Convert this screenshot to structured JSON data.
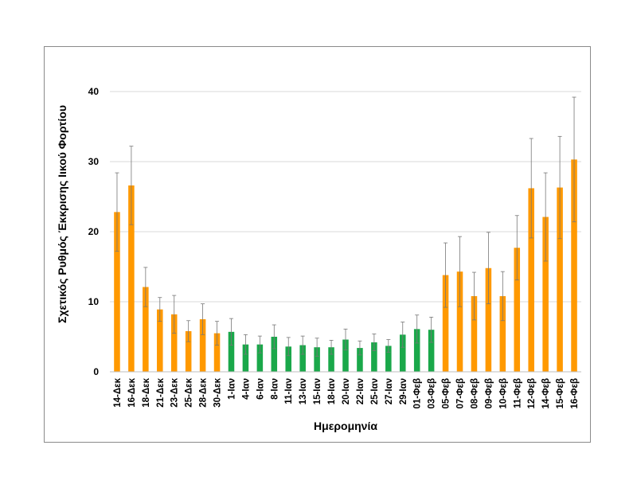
{
  "chart_data": {
    "type": "bar",
    "title": "",
    "xlabel": "Ημερομηνία",
    "ylabel": "Σχετικός Ρυθμός Έκκρισης Ιικού Φορτίου",
    "ylim": [
      0,
      45
    ],
    "yticks": [
      0,
      10,
      20,
      30,
      40
    ],
    "grid": true,
    "categories": [
      "14-Δεκ",
      "16-Δεκ",
      "18-Δεκ",
      "21-Δεκ",
      "23-Δεκ",
      "25-Δεκ",
      "28-Δεκ",
      "30-Δεκ",
      "1-Ιαν",
      "4-Ιαν",
      "6-Ιαν",
      "8-Ιαν",
      "11-Ιαν",
      "13-Ιαν",
      "15-Ιαν",
      "18-Ιαν",
      "20-Ιαν",
      "22-Ιαν",
      "25-Ιαν",
      "27-Ιαν",
      "29-Ιαν",
      "01-Φεβ",
      "03-Φεβ",
      "05-Φεβ",
      "07-Φεβ",
      "08-Φεβ",
      "09-Φεβ",
      "10-Φεβ",
      "11-Φεβ",
      "12-Φεβ",
      "14-Φεβ",
      "15-Φεβ",
      "16-Φεβ"
    ],
    "values": [
      22.8,
      26.6,
      12.1,
      8.9,
      8.2,
      5.8,
      7.5,
      5.5,
      5.7,
      3.9,
      3.9,
      5.0,
      3.6,
      3.8,
      3.5,
      3.5,
      4.6,
      3.4,
      4.2,
      3.7,
      5.3,
      6.1,
      6.0,
      13.8,
      14.3,
      10.8,
      14.8,
      10.8,
      17.7,
      26.2,
      22.1,
      26.3,
      30.3
    ],
    "error_upper": [
      28.4,
      32.2,
      14.9,
      10.6,
      10.9,
      7.3,
      9.7,
      7.2,
      7.6,
      5.3,
      5.1,
      6.7,
      4.9,
      5.1,
      4.8,
      4.5,
      6.1,
      4.4,
      5.4,
      4.6,
      7.1,
      8.1,
      7.8,
      18.4,
      19.3,
      14.2,
      19.9,
      14.3,
      22.3,
      33.3,
      28.4,
      33.6,
      39.2
    ],
    "error_lower": [
      17.2,
      21.0,
      9.3,
      7.2,
      5.5,
      4.3,
      5.3,
      3.8,
      3.8,
      2.5,
      2.7,
      3.3,
      2.3,
      2.5,
      2.2,
      2.5,
      3.1,
      2.4,
      3.0,
      2.8,
      3.5,
      4.1,
      4.2,
      9.2,
      9.3,
      7.4,
      9.7,
      7.3,
      13.1,
      19.1,
      15.8,
      19.0,
      21.4
    ],
    "bar_colors": [
      "#ff9900",
      "#ff9900",
      "#ff9900",
      "#ff9900",
      "#ff9900",
      "#ff9900",
      "#ff9900",
      "#ff9900",
      "#1aa84a",
      "#1aa84a",
      "#1aa84a",
      "#1aa84a",
      "#1aa84a",
      "#1aa84a",
      "#1aa84a",
      "#1aa84a",
      "#1aa84a",
      "#1aa84a",
      "#1aa84a",
      "#1aa84a",
      "#1aa84a",
      "#1aa84a",
      "#1aa84a",
      "#ff9900",
      "#ff9900",
      "#ff9900",
      "#ff9900",
      "#ff9900",
      "#ff9900",
      "#ff9900",
      "#ff9900",
      "#ff9900",
      "#ff9900"
    ]
  }
}
